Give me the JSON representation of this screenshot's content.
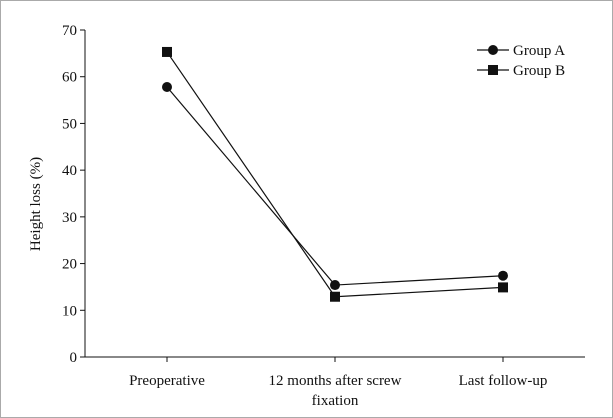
{
  "chart_data": {
    "type": "line",
    "title": "",
    "xlabel": "",
    "ylabel": "Height loss (%)",
    "categories": [
      "Preoperative",
      "12 months after screw fixation",
      "Last follow-up"
    ],
    "category_lines": [
      [
        "Preoperative"
      ],
      [
        "12 months after screw",
        "fixation"
      ],
      [
        "Last follow-up"
      ]
    ],
    "ylim": [
      0,
      70
    ],
    "yticks": [
      0,
      10,
      20,
      30,
      40,
      50,
      60,
      70
    ],
    "grid": false,
    "legend_position": "top-right",
    "series": [
      {
        "name": "Group A",
        "marker": "circle",
        "values": [
          57.8,
          15.4,
          17.4
        ]
      },
      {
        "name": "Group B",
        "marker": "square",
        "values": [
          65.3,
          12.9,
          14.9
        ]
      }
    ],
    "colors": {
      "line": "#111111",
      "border": "#aaaaaa"
    }
  }
}
